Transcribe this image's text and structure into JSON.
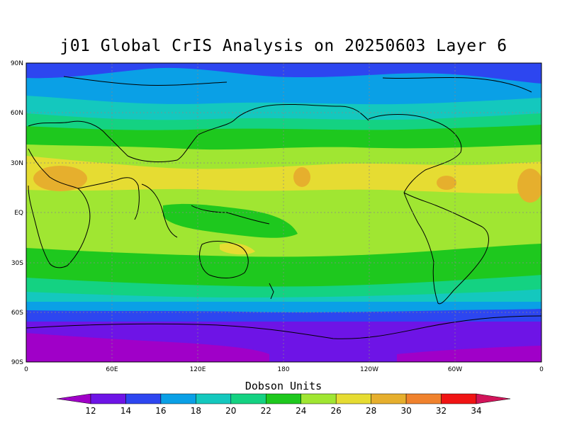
{
  "title": "j01 Global CrIS Analysis on 20250603 Layer 6",
  "units_label": "Dobson Units",
  "axes": {
    "lat_ticks": [
      "90N",
      "60N",
      "30N",
      "EQ",
      "30S",
      "60S",
      "90S"
    ],
    "lon_ticks": [
      "0",
      "60E",
      "120E",
      "180",
      "120W",
      "60W",
      "0"
    ]
  },
  "colorbar": {
    "levels": [
      "12",
      "14",
      "16",
      "18",
      "20",
      "22",
      "24",
      "26",
      "28",
      "30",
      "32",
      "34"
    ],
    "colors": [
      "#a000c8",
      "#6e14e6",
      "#2d46f0",
      "#0aa0e6",
      "#14c8be",
      "#14d282",
      "#1ec81e",
      "#a0e632",
      "#e6dc32",
      "#e6af2d",
      "#f0822d",
      "#f01414",
      "#d2145a"
    ]
  },
  "map_data": {
    "type": "filled-contour",
    "field": "ozone column layer 6",
    "contour_levels": [
      12,
      14,
      16,
      18,
      20,
      22,
      24,
      26,
      28,
      30,
      32,
      34
    ],
    "lon_range": [
      0,
      360
    ],
    "lat_range": [
      -90,
      90
    ],
    "gridlines": "dotted"
  }
}
